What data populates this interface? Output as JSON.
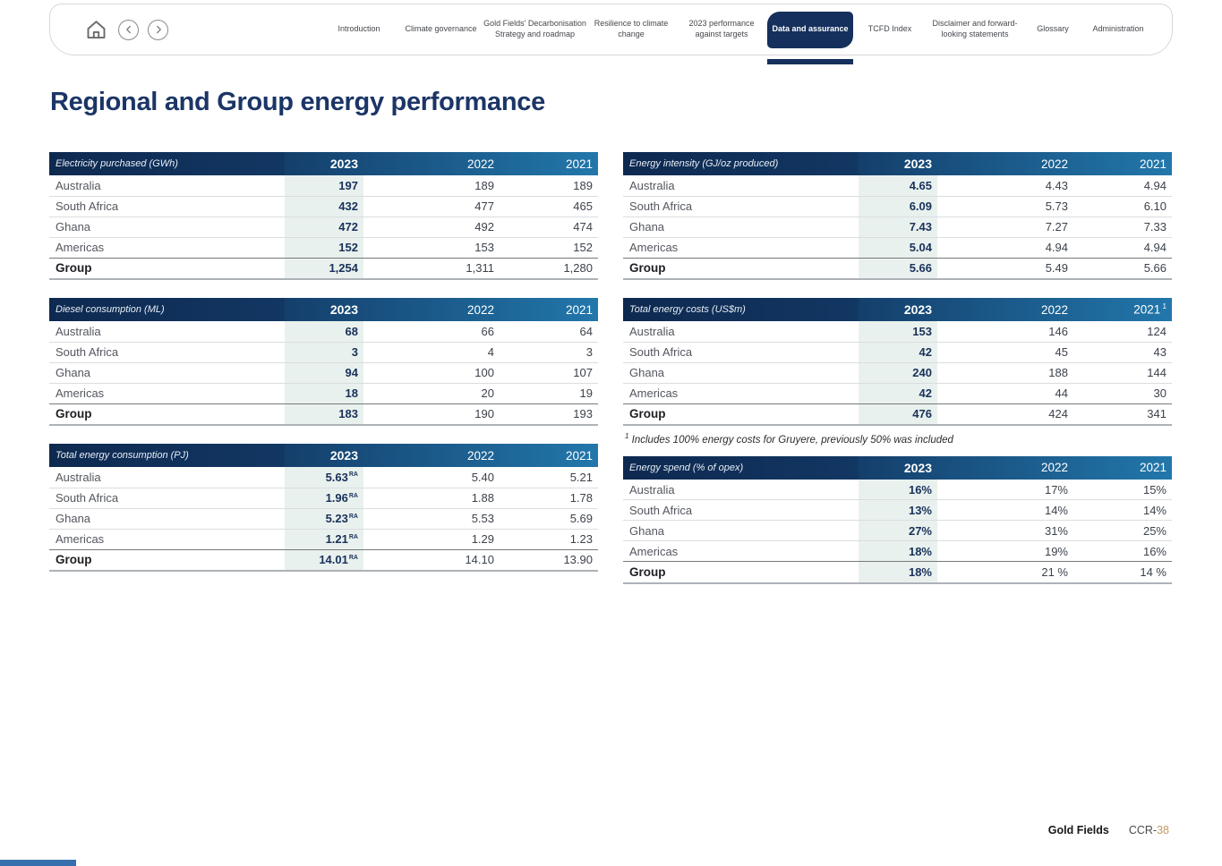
{
  "nav": {
    "tabs": [
      {
        "label": "Introduction",
        "active": false
      },
      {
        "label": "Climate governance",
        "active": false
      },
      {
        "label": "Gold Fields' Decarbonisation Strategy and roadmap",
        "active": false
      },
      {
        "label": "Resilience to climate change",
        "active": false
      },
      {
        "label": "2023 performance against targets",
        "active": false
      },
      {
        "label": "Data and assurance",
        "active": true
      },
      {
        "label": "TCFD Index",
        "active": false
      },
      {
        "label": "Disclaimer and forward-looking statements",
        "active": false
      },
      {
        "label": "Glossary",
        "active": false
      },
      {
        "label": "Administration",
        "active": false
      }
    ],
    "icons": [
      "home-icon",
      "chevron-left-icon",
      "chevron-right-icon"
    ]
  },
  "title": "Regional and Group energy performance",
  "years": [
    "2023",
    "2022",
    "2021"
  ],
  "tables": [
    {
      "id": "electricity-purchased",
      "title": "Electricity purchased (GWh)",
      "column": "left",
      "rows": [
        {
          "label": "Australia",
          "values": [
            "197",
            "189",
            "189"
          ]
        },
        {
          "label": "South Africa",
          "values": [
            "432",
            "477",
            "465"
          ]
        },
        {
          "label": "Ghana",
          "values": [
            "472",
            "492",
            "474"
          ]
        },
        {
          "label": "Americas",
          "values": [
            "152",
            "153",
            "152"
          ]
        },
        {
          "label": "Group",
          "values": [
            "1,254",
            "1,311",
            "1,280"
          ],
          "is_total": true
        }
      ]
    },
    {
      "id": "energy-intensity",
      "title": "Energy intensity (GJ/oz produced)",
      "column": "right",
      "rows": [
        {
          "label": "Australia",
          "values": [
            "4.65",
            "4.43",
            "4.94"
          ]
        },
        {
          "label": "South Africa",
          "values": [
            "6.09",
            "5.73",
            "6.10"
          ]
        },
        {
          "label": "Ghana",
          "values": [
            "7.43",
            "7.27",
            "7.33"
          ]
        },
        {
          "label": "Americas",
          "values": [
            "5.04",
            "4.94",
            "4.94"
          ]
        },
        {
          "label": "Group",
          "values": [
            "5.66",
            "5.49",
            "5.66"
          ],
          "is_total": true
        }
      ]
    },
    {
      "id": "diesel-consumption",
      "title": "Diesel consumption (ML)",
      "column": "left",
      "rows": [
        {
          "label": "Australia",
          "values": [
            "68",
            "66",
            "64"
          ]
        },
        {
          "label": "South Africa",
          "values": [
            "3",
            "4",
            "3"
          ]
        },
        {
          "label": "Ghana",
          "values": [
            "94",
            "100",
            "107"
          ]
        },
        {
          "label": "Americas",
          "values": [
            "18",
            "20",
            "19"
          ]
        },
        {
          "label": "Group",
          "values": [
            "183",
            "190",
            "193"
          ],
          "is_total": true
        }
      ]
    },
    {
      "id": "total-energy-costs",
      "title": "Total energy costs (US$m)",
      "column": "right",
      "year_sup": {
        "2021": "1"
      },
      "rows": [
        {
          "label": "Australia",
          "values": [
            "153",
            "146",
            "124"
          ]
        },
        {
          "label": "South Africa",
          "values": [
            "42",
            "45",
            "43"
          ]
        },
        {
          "label": "Ghana",
          "values": [
            "240",
            "188",
            "144"
          ]
        },
        {
          "label": "Americas",
          "values": [
            "42",
            "44",
            "30"
          ]
        },
        {
          "label": "Group",
          "values": [
            "476",
            "424",
            "341"
          ],
          "is_total": true
        }
      ]
    },
    {
      "id": "total-energy-consumption",
      "title": "Total energy consumption (PJ)",
      "column": "left",
      "rows": [
        {
          "label": "Australia",
          "values": [
            "5.63",
            "5.40",
            "5.21"
          ],
          "sups": [
            "RA",
            "",
            ""
          ]
        },
        {
          "label": "South Africa",
          "values": [
            "1.96",
            "1.88",
            "1.78"
          ],
          "sups": [
            "RA",
            "",
            ""
          ]
        },
        {
          "label": "Ghana",
          "values": [
            "5.23",
            "5.53",
            "5.69"
          ],
          "sups": [
            "RA",
            "",
            ""
          ]
        },
        {
          "label": "Americas",
          "values": [
            "1.21",
            "1.29",
            "1.23"
          ],
          "sups": [
            "RA",
            "",
            ""
          ]
        },
        {
          "label": "Group",
          "values": [
            "14.01",
            "14.10",
            "13.90"
          ],
          "sups": [
            "RA",
            "",
            ""
          ],
          "is_total": true
        }
      ]
    },
    {
      "id": "energy-spend",
      "title": "Energy spend (% of opex)",
      "column": "right",
      "rows": [
        {
          "label": "Australia",
          "values": [
            "16%",
            "17%",
            "15%"
          ]
        },
        {
          "label": "South Africa",
          "values": [
            "13%",
            "14%",
            "14%"
          ]
        },
        {
          "label": "Ghana",
          "values": [
            "27%",
            "31%",
            "25%"
          ]
        },
        {
          "label": "Americas",
          "values": [
            "18%",
            "19%",
            "16%"
          ]
        },
        {
          "label": "Group",
          "values": [
            "18%",
            "21 %",
            "14 %"
          ],
          "is_total": true
        }
      ]
    }
  ],
  "footnote": {
    "sup": "1",
    "text": "Includes 100% energy costs for Gruyere, previously 50% was included"
  },
  "footer": {
    "brand": "Gold Fields",
    "page_prefix": "CCR-",
    "page_number": "38"
  },
  "colors": {
    "navy": "#15305c",
    "header_gradient_start": "#0e2950",
    "header_gradient_end": "#2277ab",
    "highlight_2023": "#e9f1ee",
    "accent_gold": "#c49a62"
  }
}
